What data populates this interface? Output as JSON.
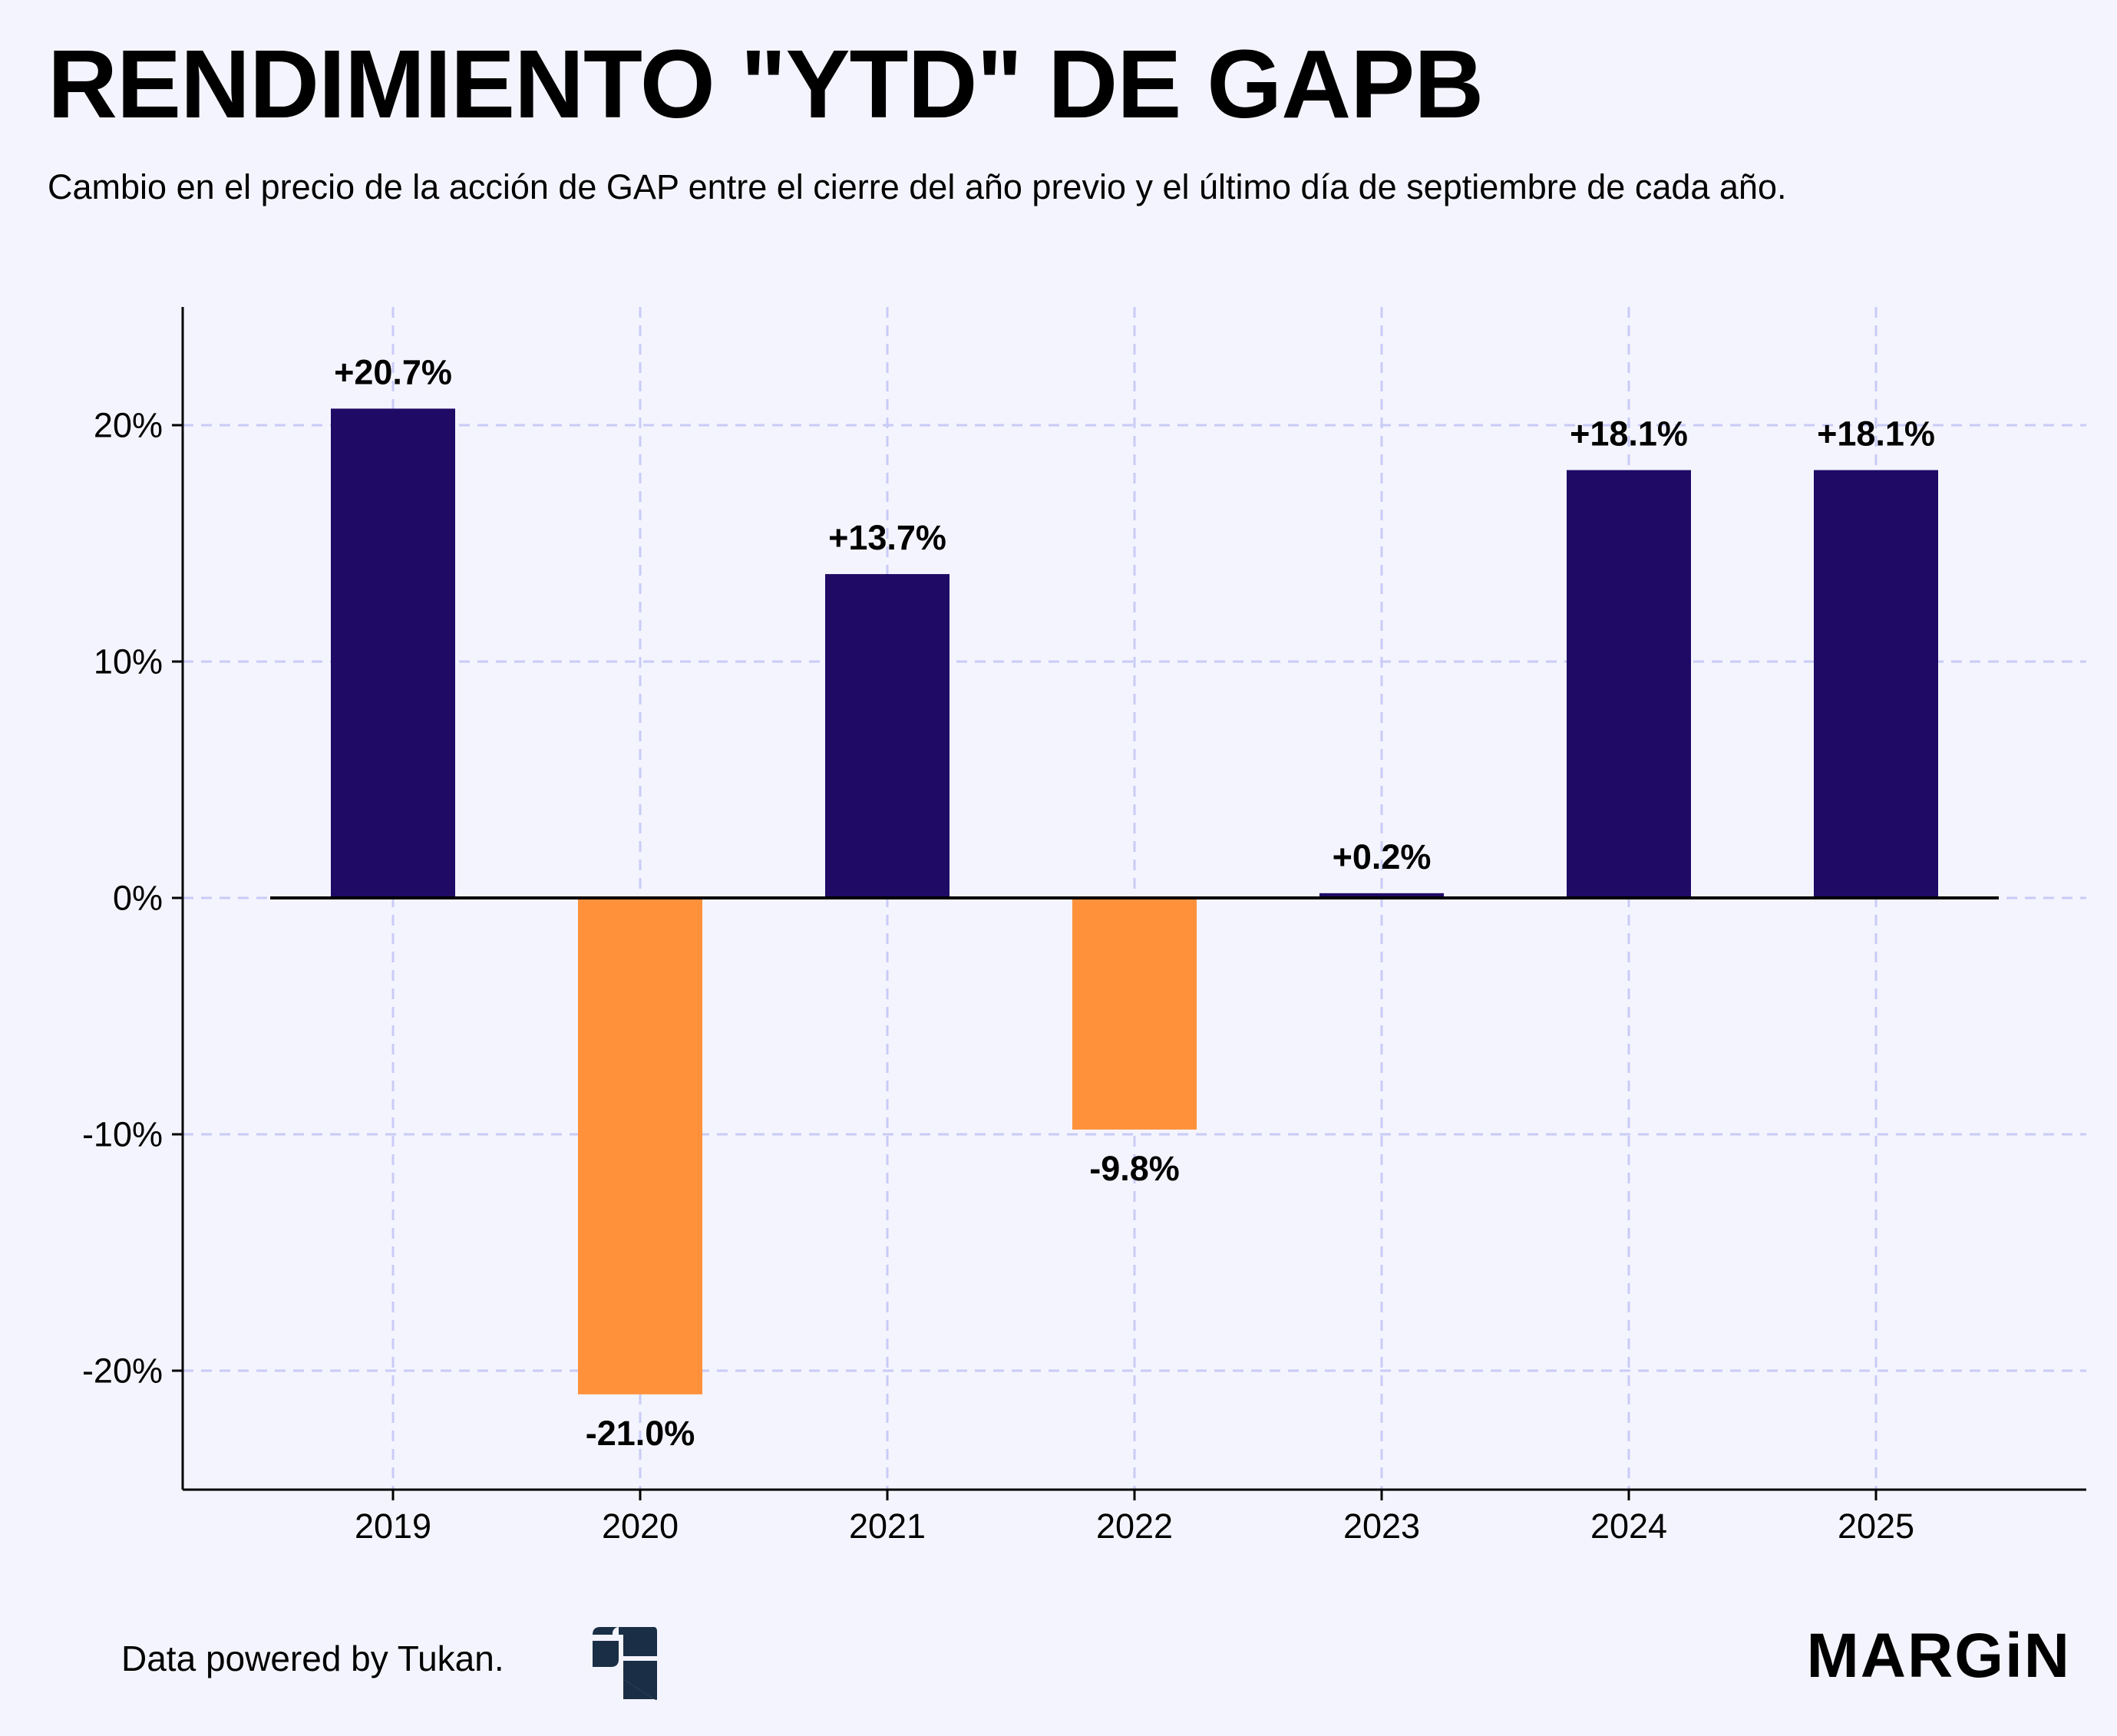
{
  "header": {
    "title": "RENDIMIENTO \"YTD\" DE GAPB",
    "subtitle": "Cambio en el precio de la acción de GAP entre el cierre del año previo y el último día de septiembre de cada año."
  },
  "chart_data": {
    "type": "bar",
    "title": "RENDIMIENTO \"YTD\" DE GAPB",
    "subtitle": "Cambio en el precio de la acción de GAP entre el cierre del año previo y el último día de septiembre de cada año.",
    "xlabel": "",
    "ylabel": "",
    "categories": [
      "2019",
      "2020",
      "2021",
      "2022",
      "2023",
      "2024",
      "2025"
    ],
    "values": [
      20.7,
      -21.0,
      13.7,
      -9.8,
      0.2,
      18.1,
      18.1
    ],
    "value_labels": [
      "+20.7%",
      "-21.0%",
      "+13.7%",
      "-9.8%",
      "+0.2%",
      "+18.1%",
      "+18.1%"
    ],
    "ylim": [
      -25,
      25
    ],
    "yticks": [
      -20,
      -10,
      0,
      10,
      20
    ],
    "ytick_labels": [
      "-20%",
      "-10%",
      "0%",
      "10%",
      "20%"
    ],
    "grid": true,
    "legend": "none",
    "colors": {
      "positive": "#1f0a66",
      "negative": "#ff913b",
      "grid": "#c9cbf7",
      "axis": "#000000",
      "background": "#f4f4fe"
    }
  },
  "footer": {
    "credit": "Data powered by Tukan.",
    "tukan_logo_icon": "tukan-logo-icon",
    "brand_logo": "MARGiN"
  }
}
